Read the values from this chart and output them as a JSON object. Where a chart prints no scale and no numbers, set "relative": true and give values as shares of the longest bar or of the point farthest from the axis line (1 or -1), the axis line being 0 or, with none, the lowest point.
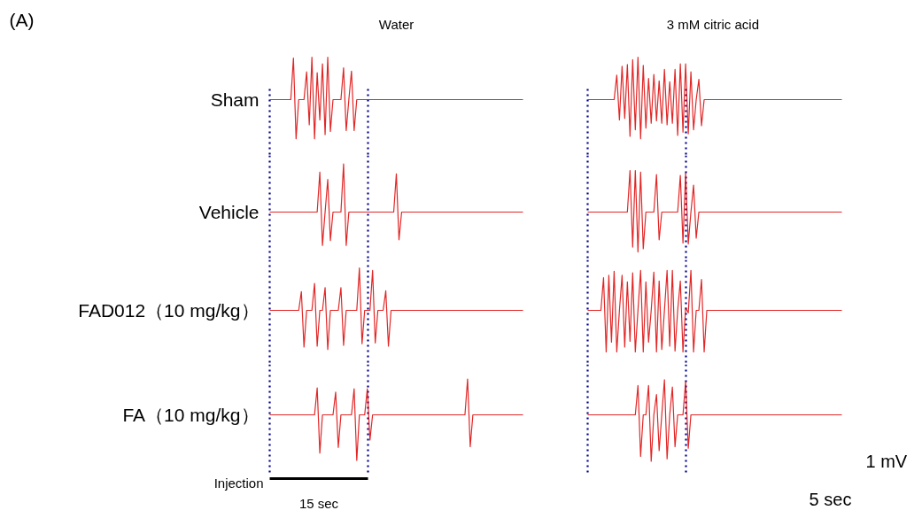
{
  "chart_data": [
    {
      "type": "line",
      "title": "Water",
      "ylabel": "Sham",
      "relative": true,
      "annotations": [
        "(A)"
      ],
      "categories": [
        null,
        null,
        null,
        null,
        null,
        null,
        null,
        null,
        null,
        null,
        null,
        null,
        null,
        null,
        null,
        null,
        null,
        null,
        null,
        null,
        null,
        null,
        null,
        null,
        null,
        null,
        null,
        null,
        null,
        null,
        null,
        null,
        null,
        null,
        null,
        null,
        null,
        null,
        null,
        null,
        null,
        null,
        null,
        null,
        null,
        null,
        null,
        null,
        null,
        null,
        null,
        null,
        null,
        null,
        null,
        null,
        null,
        null,
        null,
        null,
        null,
        null,
        null,
        null,
        null,
        null,
        null,
        null,
        null,
        null,
        null,
        null,
        null,
        null,
        null,
        null,
        null,
        null,
        null,
        null,
        null,
        null,
        null,
        null,
        null,
        null,
        null,
        null,
        null,
        null,
        null,
        null,
        null,
        null,
        null,
        null,
        null
      ],
      "series": [
        {
          "color": "#dd0000",
          "values": [
            0.48,
            0.48,
            0.48,
            0.48,
            0.48,
            0.48,
            0.48,
            0.48,
            0.48,
            0.99,
            0,
            0.48,
            0.48,
            0.48,
            0.82,
            0.17,
            1,
            0,
            0.81,
            0.23,
            0.92,
            0.05,
            1,
            0.09,
            0.48,
            0.48,
            0.48,
            0.48,
            0.87,
            0.1,
            0.48,
            0.83,
            0.1,
            0.48,
            0.48,
            0.48,
            0.48,
            0.48,
            0.48,
            0.48,
            0.48,
            0.48,
            0.48,
            0.48,
            0.48,
            0.48,
            0.48,
            0.48,
            0.48,
            0.48,
            0.48,
            0.48,
            0.48,
            0.48,
            0.48,
            0.48,
            0.48,
            0.48,
            0.48,
            0.48,
            0.48,
            0.48,
            0.48,
            0.48,
            0.48,
            0.48,
            0.48,
            0.48,
            0.48,
            0.48,
            0.48,
            0.48,
            0.48,
            0.48,
            0.48,
            0.48,
            0.48,
            0.48,
            0.48,
            0.48,
            0.48,
            0.48,
            0.48,
            0.48,
            0.48,
            0.48,
            0.48,
            0.48,
            0.48,
            0.48,
            0.48,
            0.48,
            0.48,
            0.48,
            0.48,
            0.48,
            0.48
          ]
        }
      ]
    },
    {
      "type": "line",
      "title": "3 mM  citric acid",
      "relative": true,
      "categories": [
        null,
        null,
        null,
        null,
        null,
        null,
        null,
        null,
        null,
        null,
        null,
        null,
        null,
        null,
        null,
        null,
        null,
        null,
        null,
        null,
        null,
        null,
        null,
        null,
        null,
        null,
        null,
        null,
        null,
        null,
        null,
        null,
        null,
        null,
        null,
        null,
        null,
        null,
        null,
        null,
        null,
        null,
        null,
        null,
        null,
        null,
        null,
        null,
        null,
        null,
        null,
        null,
        null,
        null,
        null,
        null,
        null,
        null,
        null,
        null,
        null,
        null,
        null,
        null,
        null,
        null,
        null,
        null,
        null,
        null,
        null,
        null,
        null,
        null,
        null,
        null,
        null,
        null,
        null,
        null,
        null,
        null,
        null,
        null,
        null,
        null,
        null,
        null,
        null,
        null,
        null,
        null,
        null,
        null,
        null,
        null,
        null
      ],
      "series": [
        {
          "color": "#dd0000",
          "values": [
            0.48,
            0.48,
            0.48,
            0.48,
            0.48,
            0.48,
            0.48,
            0.48,
            0.48,
            0.48,
            0.48,
            0.78,
            0.23,
            0.89,
            0.25,
            0.91,
            0.03,
            0.97,
            0.11,
            1,
            0,
            0.9,
            0.13,
            0.74,
            0.19,
            0.79,
            0.22,
            0.71,
            0.19,
            0.85,
            0.17,
            0.7,
            0.19,
            0.85,
            0.04,
            0.92,
            0.08,
            0.92,
            0.06,
            0.82,
            0.11,
            0.48,
            0.73,
            0.16,
            0.48,
            0.48,
            0.48,
            0.48,
            0.48,
            0.48,
            0.48,
            0.48,
            0.48,
            0.48,
            0.48,
            0.48,
            0.48,
            0.48,
            0.48,
            0.48,
            0.48,
            0.48,
            0.48,
            0.48,
            0.48,
            0.48,
            0.48,
            0.48,
            0.48,
            0.48,
            0.48,
            0.48,
            0.48,
            0.48,
            0.48,
            0.48,
            0.48,
            0.48,
            0.48,
            0.48,
            0.48,
            0.48,
            0.48,
            0.48,
            0.48,
            0.48,
            0.48,
            0.48,
            0.48,
            0.48,
            0.48,
            0.48,
            0.48,
            0.48,
            0.48,
            0.48,
            0.48
          ]
        }
      ]
    },
    {
      "type": "line",
      "ylabel": "Vehicle",
      "relative": true,
      "categories": [
        null,
        null,
        null,
        null,
        null,
        null,
        null,
        null,
        null,
        null,
        null,
        null,
        null,
        null,
        null,
        null,
        null,
        null,
        null,
        null,
        null,
        null,
        null,
        null,
        null,
        null,
        null,
        null,
        null,
        null,
        null,
        null,
        null,
        null,
        null,
        null,
        null,
        null,
        null,
        null,
        null,
        null,
        null,
        null,
        null,
        null,
        null,
        null,
        null,
        null,
        null,
        null,
        null,
        null,
        null,
        null,
        null,
        null,
        null,
        null,
        null,
        null,
        null,
        null,
        null,
        null,
        null,
        null,
        null,
        null,
        null,
        null,
        null,
        null,
        null,
        null,
        null,
        null,
        null,
        null,
        null,
        null,
        null,
        null,
        null,
        null,
        null,
        null,
        null,
        null,
        null,
        null,
        null,
        null,
        null,
        null,
        null
      ],
      "series": [
        {
          "color": "#dd0000",
          "values": [
            0.41,
            0.41,
            0.41,
            0.41,
            0.41,
            0.41,
            0.41,
            0.41,
            0.41,
            0.41,
            0.41,
            0.41,
            0.41,
            0.41,
            0.41,
            0.41,
            0.41,
            0.41,
            0.41,
            0.9,
            0,
            0.41,
            0.81,
            0.06,
            0.41,
            0.41,
            0.41,
            0.41,
            1,
            0,
            0.41,
            0.41,
            0.41,
            0.41,
            0.41,
            0.41,
            0.41,
            0.41,
            0.41,
            0.41,
            0.41,
            0.41,
            0.41,
            0.41,
            0.41,
            0.41,
            0.41,
            0.41,
            0.88,
            0.07,
            0.41,
            0.41,
            0.41,
            0.41,
            0.41,
            0.41,
            0.41,
            0.41,
            0.41,
            0.41,
            0.41,
            0.41,
            0.41,
            0.41,
            0.41,
            0.41,
            0.41,
            0.41,
            0.41,
            0.41,
            0.41,
            0.41,
            0.41,
            0.41,
            0.41,
            0.41,
            0.41,
            0.41,
            0.41,
            0.41,
            0.41,
            0.41,
            0.41,
            0.41,
            0.41,
            0.41,
            0.41,
            0.41,
            0.41,
            0.41,
            0.41,
            0.41,
            0.41,
            0.41,
            0.41,
            0.41,
            0.41
          ]
        }
      ]
    },
    {
      "type": "line",
      "relative": true,
      "categories": [
        null,
        null,
        null,
        null,
        null,
        null,
        null,
        null,
        null,
        null,
        null,
        null,
        null,
        null,
        null,
        null,
        null,
        null,
        null,
        null,
        null,
        null,
        null,
        null,
        null,
        null,
        null,
        null,
        null,
        null,
        null,
        null,
        null,
        null,
        null,
        null,
        null,
        null,
        null,
        null,
        null,
        null,
        null,
        null,
        null,
        null,
        null,
        null,
        null,
        null,
        null,
        null,
        null,
        null,
        null,
        null,
        null,
        null,
        null,
        null,
        null,
        null,
        null,
        null,
        null,
        null,
        null,
        null,
        null,
        null,
        null,
        null,
        null,
        null,
        null,
        null,
        null,
        null,
        null,
        null,
        null,
        null,
        null,
        null,
        null,
        null,
        null,
        null,
        null,
        null,
        null,
        null,
        null,
        null,
        null,
        null,
        null
      ],
      "series": [
        {
          "color": "#dd0000",
          "values": [
            0.49,
            0.49,
            0.49,
            0.49,
            0.49,
            0.49,
            0.49,
            0.49,
            0.49,
            0.49,
            0.49,
            0.49,
            0.49,
            0.49,
            0.49,
            0.49,
            1,
            0.06,
            1,
            0,
            0.98,
            0.04,
            0.49,
            0.49,
            0.49,
            0.49,
            0.95,
            0.15,
            0.49,
            0.49,
            0.49,
            0.49,
            0.49,
            0.49,
            0.49,
            0.94,
            0.11,
            0.97,
            0.1,
            0.49,
            0.82,
            0.17,
            0.49,
            0.49,
            0.49,
            0.49,
            0.49,
            0.49,
            0.49,
            0.49,
            0.49,
            0.49,
            0.49,
            0.49,
            0.49,
            0.49,
            0.49,
            0.49,
            0.49,
            0.49,
            0.49,
            0.49,
            0.49,
            0.49,
            0.49,
            0.49,
            0.49,
            0.49,
            0.49,
            0.49,
            0.49,
            0.49,
            0.49,
            0.49,
            0.49,
            0.49,
            0.49,
            0.49,
            0.49,
            0.49,
            0.49,
            0.49,
            0.49,
            0.49,
            0.49,
            0.49,
            0.49,
            0.49,
            0.49,
            0.49,
            0.49,
            0.49,
            0.49,
            0.49,
            0.49,
            0.49,
            0.49
          ]
        }
      ]
    },
    {
      "type": "line",
      "ylabel": "FAD012（10 mg/kg）",
      "relative": true,
      "categories": [
        null,
        null,
        null,
        null,
        null,
        null,
        null,
        null,
        null,
        null,
        null,
        null,
        null,
        null,
        null,
        null,
        null,
        null,
        null,
        null,
        null,
        null,
        null,
        null,
        null,
        null,
        null,
        null,
        null,
        null,
        null,
        null,
        null,
        null,
        null,
        null,
        null,
        null,
        null,
        null,
        null,
        null,
        null,
        null,
        null,
        null,
        null,
        null,
        null,
        null,
        null,
        null,
        null,
        null,
        null,
        null,
        null,
        null,
        null,
        null,
        null,
        null,
        null,
        null,
        null,
        null,
        null,
        null,
        null,
        null,
        null,
        null,
        null,
        null,
        null,
        null,
        null,
        null,
        null,
        null,
        null,
        null,
        null,
        null,
        null,
        null,
        null,
        null,
        null,
        null,
        null,
        null,
        null,
        null,
        null,
        null,
        null
      ],
      "series": [
        {
          "color": "#dd0000",
          "values": [
            0.48,
            0.48,
            0.48,
            0.48,
            0.48,
            0.48,
            0.48,
            0.48,
            0.48,
            0.48,
            0.48,
            0.48,
            0.71,
            0.03,
            0.48,
            0.48,
            0.48,
            0.81,
            0.04,
            0.48,
            0.48,
            0.76,
            0,
            0.48,
            0.48,
            0.48,
            0.48,
            0.76,
            0.05,
            0.48,
            0.48,
            0.48,
            0.48,
            0.48,
            1,
            0.07,
            0.48,
            0.48,
            0.48,
            0.97,
            0.08,
            0.48,
            0.48,
            0.48,
            0.72,
            0.04,
            0.48,
            0.48,
            0.48,
            0.48,
            0.48,
            0.48,
            0.48,
            0.48,
            0.48,
            0.48,
            0.48,
            0.48,
            0.48,
            0.48,
            0.48,
            0.48,
            0.48,
            0.48,
            0.48,
            0.48,
            0.48,
            0.48,
            0.48,
            0.48,
            0.48,
            0.48,
            0.48,
            0.48,
            0.48,
            0.48,
            0.48,
            0.48,
            0.48,
            0.48,
            0.48,
            0.48,
            0.48,
            0.48,
            0.48,
            0.48,
            0.48,
            0.48,
            0.48,
            0.48,
            0.48,
            0.48,
            0.48,
            0.48,
            0.48,
            0.48,
            0.48
          ]
        }
      ]
    },
    {
      "type": "line",
      "relative": true,
      "categories": [
        null,
        null,
        null,
        null,
        null,
        null,
        null,
        null,
        null,
        null,
        null,
        null,
        null,
        null,
        null,
        null,
        null,
        null,
        null,
        null,
        null,
        null,
        null,
        null,
        null,
        null,
        null,
        null,
        null,
        null,
        null,
        null,
        null,
        null,
        null,
        null,
        null,
        null,
        null,
        null,
        null,
        null,
        null,
        null,
        null,
        null,
        null,
        null,
        null,
        null,
        null,
        null,
        null,
        null,
        null,
        null,
        null,
        null,
        null,
        null,
        null,
        null,
        null,
        null,
        null,
        null,
        null,
        null,
        null,
        null,
        null,
        null,
        null,
        null,
        null,
        null,
        null,
        null,
        null,
        null,
        null,
        null,
        null,
        null,
        null,
        null,
        null,
        null,
        null,
        null,
        null,
        null,
        null,
        null,
        null,
        null,
        null
      ],
      "series": [
        {
          "color": "#dd0000",
          "values": [
            0.51,
            0.51,
            0.51,
            0.51,
            0.51,
            0.51,
            0.91,
            0,
            0.94,
            0.12,
            0.99,
            0,
            0.51,
            0.94,
            0.06,
            0.86,
            0.13,
            0.97,
            0,
            0.51,
            1,
            0,
            0.86,
            0.12,
            0.51,
            0.98,
            0,
            0.87,
            0.03,
            0.51,
            1,
            0.07,
            1,
            0.01,
            0.51,
            0.87,
            0,
            0.54,
            0.48,
            1,
            0,
            0.51,
            0.51,
            0.89,
            0,
            0.51,
            0.51,
            0.51,
            0.51,
            0.51,
            0.51,
            0.51,
            0.51,
            0.51,
            0.51,
            0.51,
            0.51,
            0.51,
            0.51,
            0.51,
            0.51,
            0.51,
            0.51,
            0.51,
            0.51,
            0.51,
            0.51,
            0.51,
            0.51,
            0.51,
            0.51,
            0.51,
            0.51,
            0.51,
            0.51,
            0.51,
            0.51,
            0.51,
            0.51,
            0.51,
            0.51,
            0.51,
            0.51,
            0.51,
            0.51,
            0.51,
            0.51,
            0.51,
            0.51,
            0.51,
            0.51,
            0.51,
            0.51,
            0.51,
            0.51,
            0.51,
            0.51
          ]
        }
      ]
    },
    {
      "type": "line",
      "ylabel": "FA（10 mg/kg）",
      "relative": true,
      "annotations": [
        "Injection",
        "15 sec"
      ],
      "categories": [
        null,
        null,
        null,
        null,
        null,
        null,
        null,
        null,
        null,
        null,
        null,
        null,
        null,
        null,
        null,
        null,
        null,
        null,
        null,
        null,
        null,
        null,
        null,
        null,
        null,
        null,
        null,
        null,
        null,
        null,
        null,
        null,
        null,
        null,
        null,
        null,
        null,
        null,
        null,
        null,
        null,
        null,
        null,
        null,
        null,
        null,
        null,
        null,
        null,
        null,
        null,
        null,
        null,
        null,
        null,
        null,
        null,
        null,
        null,
        null,
        null,
        null,
        null,
        null,
        null,
        null,
        null,
        null,
        null,
        null,
        null,
        null,
        null,
        null,
        null,
        null,
        null,
        null,
        null,
        null,
        null,
        null,
        null,
        null,
        null,
        null,
        null,
        null,
        null,
        null,
        null,
        null,
        null,
        null,
        null,
        null,
        null
      ],
      "series": [
        {
          "color": "#dd0000",
          "values": [
            0.56,
            0.56,
            0.56,
            0.56,
            0.56,
            0.56,
            0.56,
            0.56,
            0.56,
            0.56,
            0.56,
            0.56,
            0.56,
            0.56,
            0.56,
            0.56,
            0.56,
            0.56,
            0.89,
            0.09,
            0.56,
            0.56,
            0.56,
            0.56,
            0.56,
            0.84,
            0.16,
            0.56,
            0.56,
            0.56,
            0.56,
            0.56,
            0.88,
            0,
            0.56,
            0.56,
            0.56,
            0.88,
            0.25,
            0.56,
            0.56,
            0.56,
            0.56,
            0.56,
            0.56,
            0.56,
            0.56,
            0.56,
            0.56,
            0.56,
            0.56,
            0.56,
            0.56,
            0.56,
            0.56,
            0.56,
            0.56,
            0.56,
            0.56,
            0.56,
            0.56,
            0.56,
            0.56,
            0.56,
            0.56,
            0.56,
            0.56,
            0.56,
            0.56,
            0.56,
            0.56,
            0.56,
            0.56,
            0.56,
            0.56,
            1,
            0.17,
            0.56,
            0.56,
            0.56,
            0.56,
            0.56,
            0.56,
            0.56,
            0.56,
            0.56,
            0.56,
            0.56,
            0.56,
            0.56,
            0.56,
            0.56,
            0.56,
            0.56,
            0.56,
            0.56,
            0.56
          ]
        }
      ]
    },
    {
      "type": "line",
      "relative": true,
      "annotations": [
        "1 mV",
        "5 sec"
      ],
      "categories": [
        null,
        null,
        null,
        null,
        null,
        null,
        null,
        null,
        null,
        null,
        null,
        null,
        null,
        null,
        null,
        null,
        null,
        null,
        null,
        null,
        null,
        null,
        null,
        null,
        null,
        null,
        null,
        null,
        null,
        null,
        null,
        null,
        null,
        null,
        null,
        null,
        null,
        null,
        null,
        null,
        null,
        null,
        null,
        null,
        null,
        null,
        null,
        null,
        null,
        null,
        null,
        null,
        null,
        null,
        null,
        null,
        null,
        null,
        null,
        null,
        null,
        null,
        null,
        null,
        null,
        null,
        null,
        null,
        null,
        null,
        null,
        null,
        null,
        null,
        null,
        null,
        null,
        null,
        null,
        null,
        null,
        null,
        null,
        null,
        null,
        null,
        null,
        null,
        null,
        null,
        null,
        null,
        null,
        null,
        null,
        null,
        null
      ],
      "series": [
        {
          "color": "#dd0000",
          "values": [
            0.57,
            0.57,
            0.57,
            0.57,
            0.57,
            0.57,
            0.57,
            0.57,
            0.57,
            0.57,
            0.57,
            0.57,
            0.57,
            0.57,
            0.57,
            0.57,
            0.57,
            0.57,
            0.57,
            0.93,
            0.06,
            0.57,
            0.57,
            0.93,
            0,
            0.57,
            0.82,
            0.13,
            0.57,
            1,
            0.03,
            0.57,
            0.91,
            0.18,
            0.57,
            0.57,
            0.57,
            0.98,
            0.16,
            0.57,
            0.57,
            0.57,
            0.57,
            0.57,
            0.57,
            0.57,
            0.57,
            0.57,
            0.57,
            0.57,
            0.57,
            0.57,
            0.57,
            0.57,
            0.57,
            0.57,
            0.57,
            0.57,
            0.57,
            0.57,
            0.57,
            0.57,
            0.57,
            0.57,
            0.57,
            0.57,
            0.57,
            0.57,
            0.57,
            0.57,
            0.57,
            0.57,
            0.57,
            0.57,
            0.57,
            0.57,
            0.57,
            0.57,
            0.57,
            0.57,
            0.57,
            0.57,
            0.57,
            0.57,
            0.57,
            0.57,
            0.57,
            0.57,
            0.57,
            0.57,
            0.57,
            0.57,
            0.57,
            0.57,
            0.57,
            0.57,
            0.57
          ]
        }
      ]
    }
  ]
}
